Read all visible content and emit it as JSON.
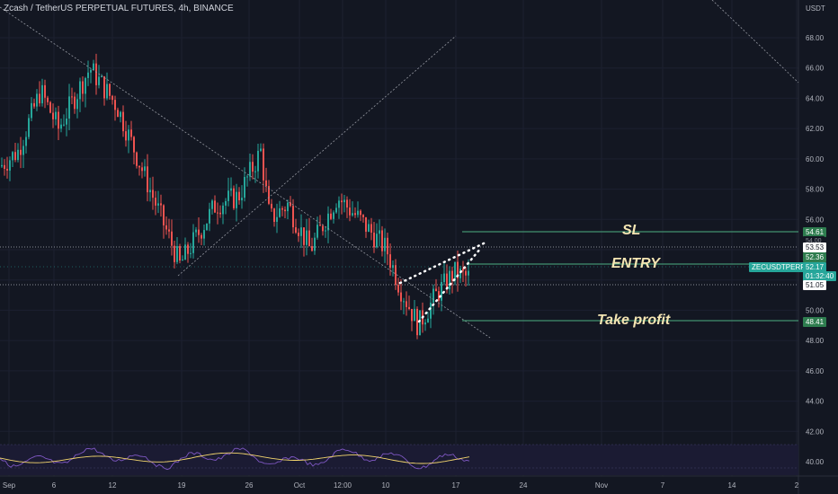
{
  "header": {
    "title": "Zcash / TetherUS PERPETUAL FUTURES, 4h, BINANCE"
  },
  "price_axis": {
    "unit": "USDT",
    "ticks": [
      "68.00",
      "66.00",
      "64.00",
      "62.00",
      "60.00",
      "58.00",
      "56.00",
      "54.00",
      "52.00",
      "50.00",
      "48.00",
      "46.00",
      "44.00",
      "42.00",
      "40.00"
    ]
  },
  "time_axis": {
    "ticks": [
      "Sep",
      "6",
      "12",
      "19",
      "26",
      "Oct",
      "12:00",
      "10",
      "17",
      "24",
      "Nov",
      "7",
      "14",
      "2"
    ]
  },
  "annotations": {
    "sl": "SL",
    "entry": "ENTRY",
    "take_profit": "Take profit"
  },
  "price_tags": {
    "sl": "54.61",
    "level_upper": "53.53",
    "entry": "52.36",
    "symbol": "ZECUSDTPERP",
    "last_price": "52.17",
    "countdown": "01:32:40",
    "level_lower": "51.05",
    "take_profit": "48.41",
    "partial_hidden": "54.00"
  },
  "colors": {
    "background": "#131722",
    "up": "#26a69a",
    "down": "#ef5350",
    "level_line": "#4caf82",
    "rsi": "#7e57c2",
    "rsi_ma": "#f5d76e"
  },
  "chart_data": {
    "type": "line",
    "title": "Zcash / TetherUS PERPETUAL FUTURES, 4h, BINANCE",
    "xlabel": "",
    "ylabel": "USDT",
    "ylim": [
      39,
      69
    ],
    "series": [
      {
        "name": "",
        "x": [
          "Sep",
          "6",
          "12",
          "19",
          "26",
          "Oct",
          "10",
          "17"
        ],
        "values": [
          59.5,
          63.5,
          65.5,
          53.0,
          60.5,
          56.5,
          49.0,
          52.2
        ]
      }
    ],
    "levels": {
      "sl": 54.61,
      "entry": 52.36,
      "take_profit": 48.41,
      "upper": 53.53,
      "lower": 51.05
    }
  }
}
